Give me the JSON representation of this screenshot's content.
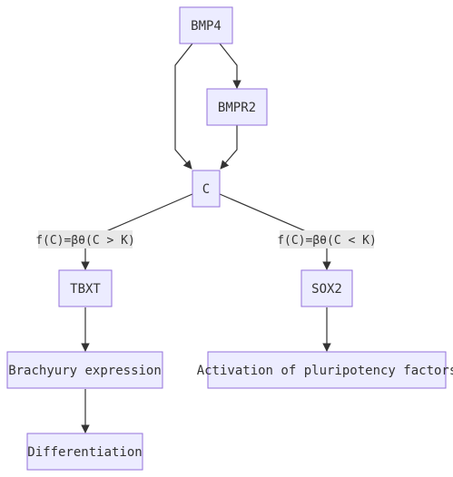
{
  "nodes": {
    "bmp4": "BMP4",
    "bmpr2": "BMPR2",
    "c": "C",
    "tbxt": "TBXT",
    "sox2": "SOX2",
    "brachyury": "Brachyury expression",
    "pluripotency": "Activation of pluripotency factors",
    "differentiation": "Differentiation"
  },
  "edge_labels": {
    "c_to_tbxt": "f(C)=βθ(C > K)",
    "c_to_sox2": "f(C)=βθ(C < K)"
  }
}
